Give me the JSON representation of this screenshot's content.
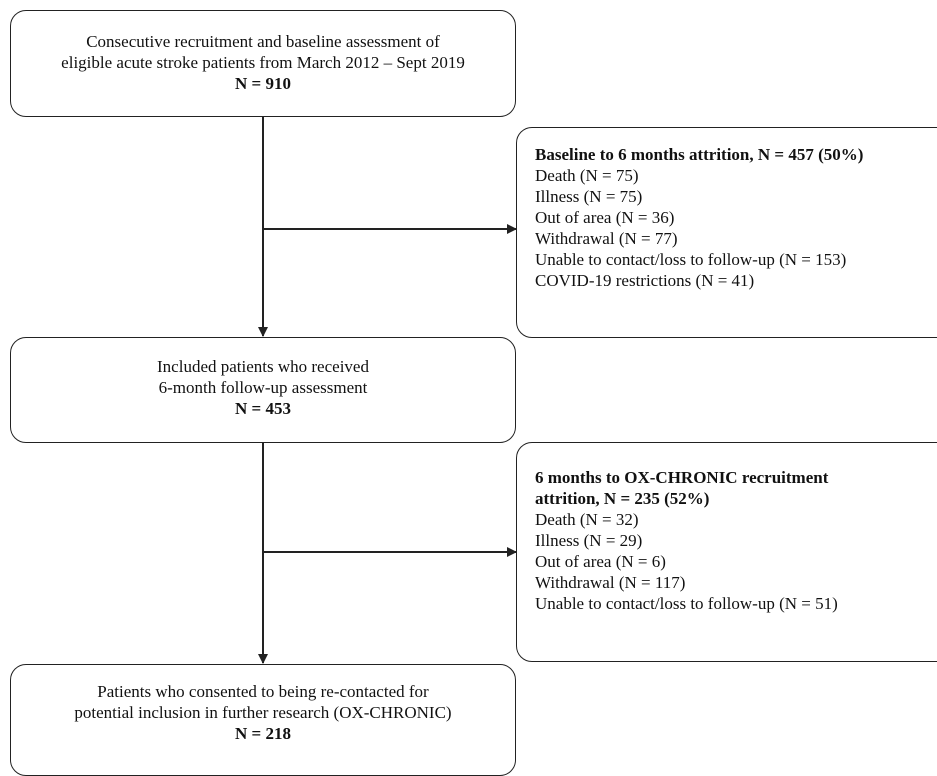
{
  "boxes": {
    "recruitment": {
      "lines": [
        "Consecutive recruitment and baseline assessment of",
        "eligible acute stroke patients from March 2012 – Sept 2019"
      ],
      "n": "N = 910"
    },
    "attrition1": {
      "title": "Baseline to 6 months attrition, N = 457 (50%)",
      "items": [
        "Death (N = 75)",
        "Illness (N = 75)",
        "Out of area (N = 36)",
        "Withdrawal (N = 77)",
        "Unable to contact/loss to follow-up (N = 153)",
        "COVID-19 restrictions (N = 41)"
      ]
    },
    "followup": {
      "lines": [
        "Included patients who received",
        "6-month follow-up assessment"
      ],
      "n": "N = 453"
    },
    "attrition2": {
      "title_lines": [
        "6 months to OX-CHRONIC recruitment",
        "attrition, N = 235 (52%)"
      ],
      "items": [
        "Death (N = 32)",
        "Illness (N = 29)",
        "Out of area (N = 6)",
        "Withdrawal (N = 117)",
        "Unable to contact/loss to follow-up (N = 51)"
      ]
    },
    "consented": {
      "lines": [
        "Patients who consented to being re-contacted for",
        "potential inclusion in further research (OX-CHRONIC)"
      ],
      "n": "N =  218"
    }
  },
  "colors": {
    "stroke": "#222222",
    "text": "#111111",
    "background": "#ffffff"
  }
}
